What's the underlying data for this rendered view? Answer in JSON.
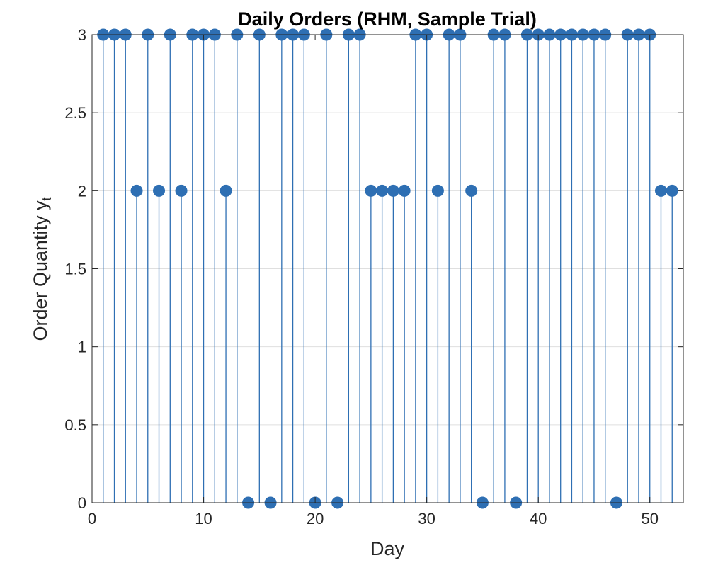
{
  "chart_data": {
    "type": "stem",
    "title": "Daily Orders (RHM, Sample Trial)",
    "xlabel": "Day",
    "ylabel_main": "Order Quantity y",
    "ylabel_sub": "t",
    "xlim": [
      0,
      53
    ],
    "ylim": [
      0,
      3
    ],
    "xticks": [
      0,
      10,
      20,
      30,
      40,
      50
    ],
    "yticks": [
      0,
      0.5,
      1,
      1.5,
      2,
      2.5,
      3
    ],
    "grid": "horizontal",
    "series": [
      {
        "color": "#2e6fb3",
        "x": [
          1,
          2,
          3,
          4,
          5,
          6,
          7,
          8,
          9,
          10,
          11,
          12,
          13,
          14,
          15,
          16,
          17,
          18,
          19,
          20,
          21,
          22,
          23,
          24,
          25,
          26,
          27,
          28,
          29,
          30,
          31,
          32,
          33,
          34,
          35,
          36,
          37,
          38,
          39,
          40,
          41,
          42,
          43,
          44,
          45,
          46,
          47,
          48,
          49,
          50,
          51,
          52
        ],
        "values": [
          3,
          3,
          3,
          2,
          3,
          2,
          3,
          2,
          3,
          3,
          3,
          2,
          3,
          0,
          3,
          0,
          3,
          3,
          3,
          0,
          3,
          0,
          3,
          3,
          2,
          2,
          2,
          2,
          3,
          3,
          2,
          3,
          3,
          2,
          0,
          3,
          3,
          0,
          3,
          3,
          3,
          3,
          3,
          3,
          3,
          3,
          0,
          3,
          3,
          3,
          2,
          2
        ]
      }
    ]
  }
}
